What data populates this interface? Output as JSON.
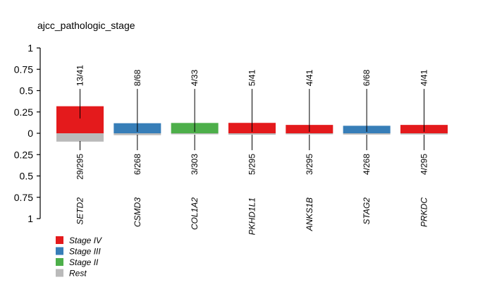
{
  "chart_data": {
    "type": "bar",
    "title": "ajcc_pathologic_stage",
    "xlabel": "",
    "ylabel": "",
    "ylim": [
      -1,
      1
    ],
    "y_tick_labels": [
      "1",
      "0.75",
      "0.5",
      "0.25",
      "0",
      "0.25",
      "0.5",
      "0.75",
      "1"
    ],
    "y_tick_values": [
      1,
      0.75,
      0.5,
      0.25,
      0,
      -0.25,
      -0.5,
      -0.75,
      -1
    ],
    "categories": [
      "SETD2",
      "CSMD3",
      "COL1A2",
      "PKHD1L1",
      "ANKS1B",
      "STAG2",
      "PRKDC"
    ],
    "top_series": [
      {
        "gene": "SETD2",
        "stage": "Stage IV",
        "label": "13/41",
        "value": 0.317,
        "color": "#e41a1c"
      },
      {
        "gene": "CSMD3",
        "stage": "Stage III",
        "label": "8/68",
        "value": 0.118,
        "color": "#377eb8"
      },
      {
        "gene": "COL1A2",
        "stage": "Stage II",
        "label": "4/33",
        "value": 0.121,
        "color": "#4daf4a"
      },
      {
        "gene": "PKHD1L1",
        "stage": "Stage IV",
        "label": "5/41",
        "value": 0.122,
        "color": "#e41a1c"
      },
      {
        "gene": "ANKS1B",
        "stage": "Stage IV",
        "label": "4/41",
        "value": 0.098,
        "color": "#e41a1c"
      },
      {
        "gene": "STAG2",
        "stage": "Stage III",
        "label": "6/68",
        "value": 0.088,
        "color": "#377eb8"
      },
      {
        "gene": "PRKDC",
        "stage": "Stage IV",
        "label": "4/41",
        "value": 0.098,
        "color": "#e41a1c"
      }
    ],
    "bottom_series": [
      {
        "gene": "SETD2",
        "label": "29/295",
        "value": 0.098
      },
      {
        "gene": "CSMD3",
        "label": "6/268",
        "value": 0.022
      },
      {
        "gene": "COL1A2",
        "label": "3/303",
        "value": 0.01
      },
      {
        "gene": "PKHD1L1",
        "label": "5/295",
        "value": 0.017
      },
      {
        "gene": "ANKS1B",
        "label": "3/295",
        "value": 0.01
      },
      {
        "gene": "STAG2",
        "label": "4/268",
        "value": 0.015
      },
      {
        "gene": "PRKDC",
        "label": "4/295",
        "value": 0.014
      }
    ],
    "rest_color": "#bababa",
    "legend": [
      {
        "name": "Stage IV",
        "color": "#e41a1c"
      },
      {
        "name": "Stage III",
        "color": "#377eb8"
      },
      {
        "name": "Stage II",
        "color": "#4daf4a"
      },
      {
        "name": "Rest",
        "color": "#bababa"
      }
    ],
    "legend_position": "bottom-left",
    "grid": false
  }
}
